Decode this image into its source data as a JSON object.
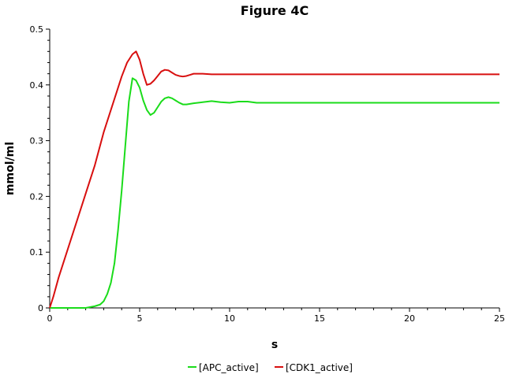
{
  "chart_data": {
    "type": "line",
    "title": "Figure 4C",
    "xlabel": "s",
    "ylabel": "mmol/ml",
    "xlim": [
      0,
      25
    ],
    "ylim": [
      0,
      0.5
    ],
    "x_ticks": [
      "0",
      "5",
      "10",
      "15",
      "20",
      "25"
    ],
    "y_ticks": [
      "0",
      "0.1",
      "0.2",
      "0.3",
      "0.4",
      "0.5"
    ],
    "grid": false,
    "legend_position": "bottom-center",
    "series": [
      {
        "name": "[APC_active]",
        "color": "#1adc1a",
        "x": [
          0,
          1,
          2,
          2.5,
          2.8,
          3.0,
          3.2,
          3.4,
          3.6,
          3.8,
          4.0,
          4.2,
          4.4,
          4.6,
          4.8,
          5.0,
          5.2,
          5.4,
          5.6,
          5.8,
          6.0,
          6.2,
          6.4,
          6.6,
          6.8,
          7.0,
          7.2,
          7.4,
          7.6,
          7.8,
          8.0,
          8.5,
          9.0,
          9.5,
          10.0,
          10.5,
          11.0,
          11.5,
          12,
          15,
          20,
          25
        ],
        "y": [
          0,
          0,
          0,
          0.003,
          0.006,
          0.012,
          0.025,
          0.045,
          0.08,
          0.14,
          0.21,
          0.29,
          0.37,
          0.412,
          0.408,
          0.395,
          0.372,
          0.355,
          0.346,
          0.35,
          0.36,
          0.37,
          0.376,
          0.378,
          0.376,
          0.372,
          0.368,
          0.365,
          0.365,
          0.366,
          0.367,
          0.369,
          0.371,
          0.369,
          0.368,
          0.37,
          0.37,
          0.368,
          0.368,
          0.368,
          0.368,
          0.368
        ]
      },
      {
        "name": "[CDK1_active]",
        "color": "#d80f0f",
        "x": [
          0,
          0.2,
          0.5,
          1.0,
          1.5,
          2.0,
          2.5,
          3.0,
          3.5,
          4.0,
          4.3,
          4.6,
          4.8,
          5.0,
          5.2,
          5.4,
          5.6,
          5.8,
          6.0,
          6.2,
          6.4,
          6.6,
          6.8,
          7.0,
          7.2,
          7.4,
          7.6,
          7.8,
          8.0,
          8.5,
          9.0,
          9.5,
          10,
          15,
          20,
          25
        ],
        "y": [
          0,
          0.02,
          0.055,
          0.105,
          0.155,
          0.205,
          0.255,
          0.315,
          0.365,
          0.415,
          0.44,
          0.455,
          0.46,
          0.445,
          0.42,
          0.4,
          0.402,
          0.408,
          0.416,
          0.424,
          0.427,
          0.426,
          0.422,
          0.418,
          0.416,
          0.415,
          0.416,
          0.418,
          0.42,
          0.42,
          0.419,
          0.419,
          0.419,
          0.419,
          0.419,
          0.419
        ]
      }
    ]
  }
}
